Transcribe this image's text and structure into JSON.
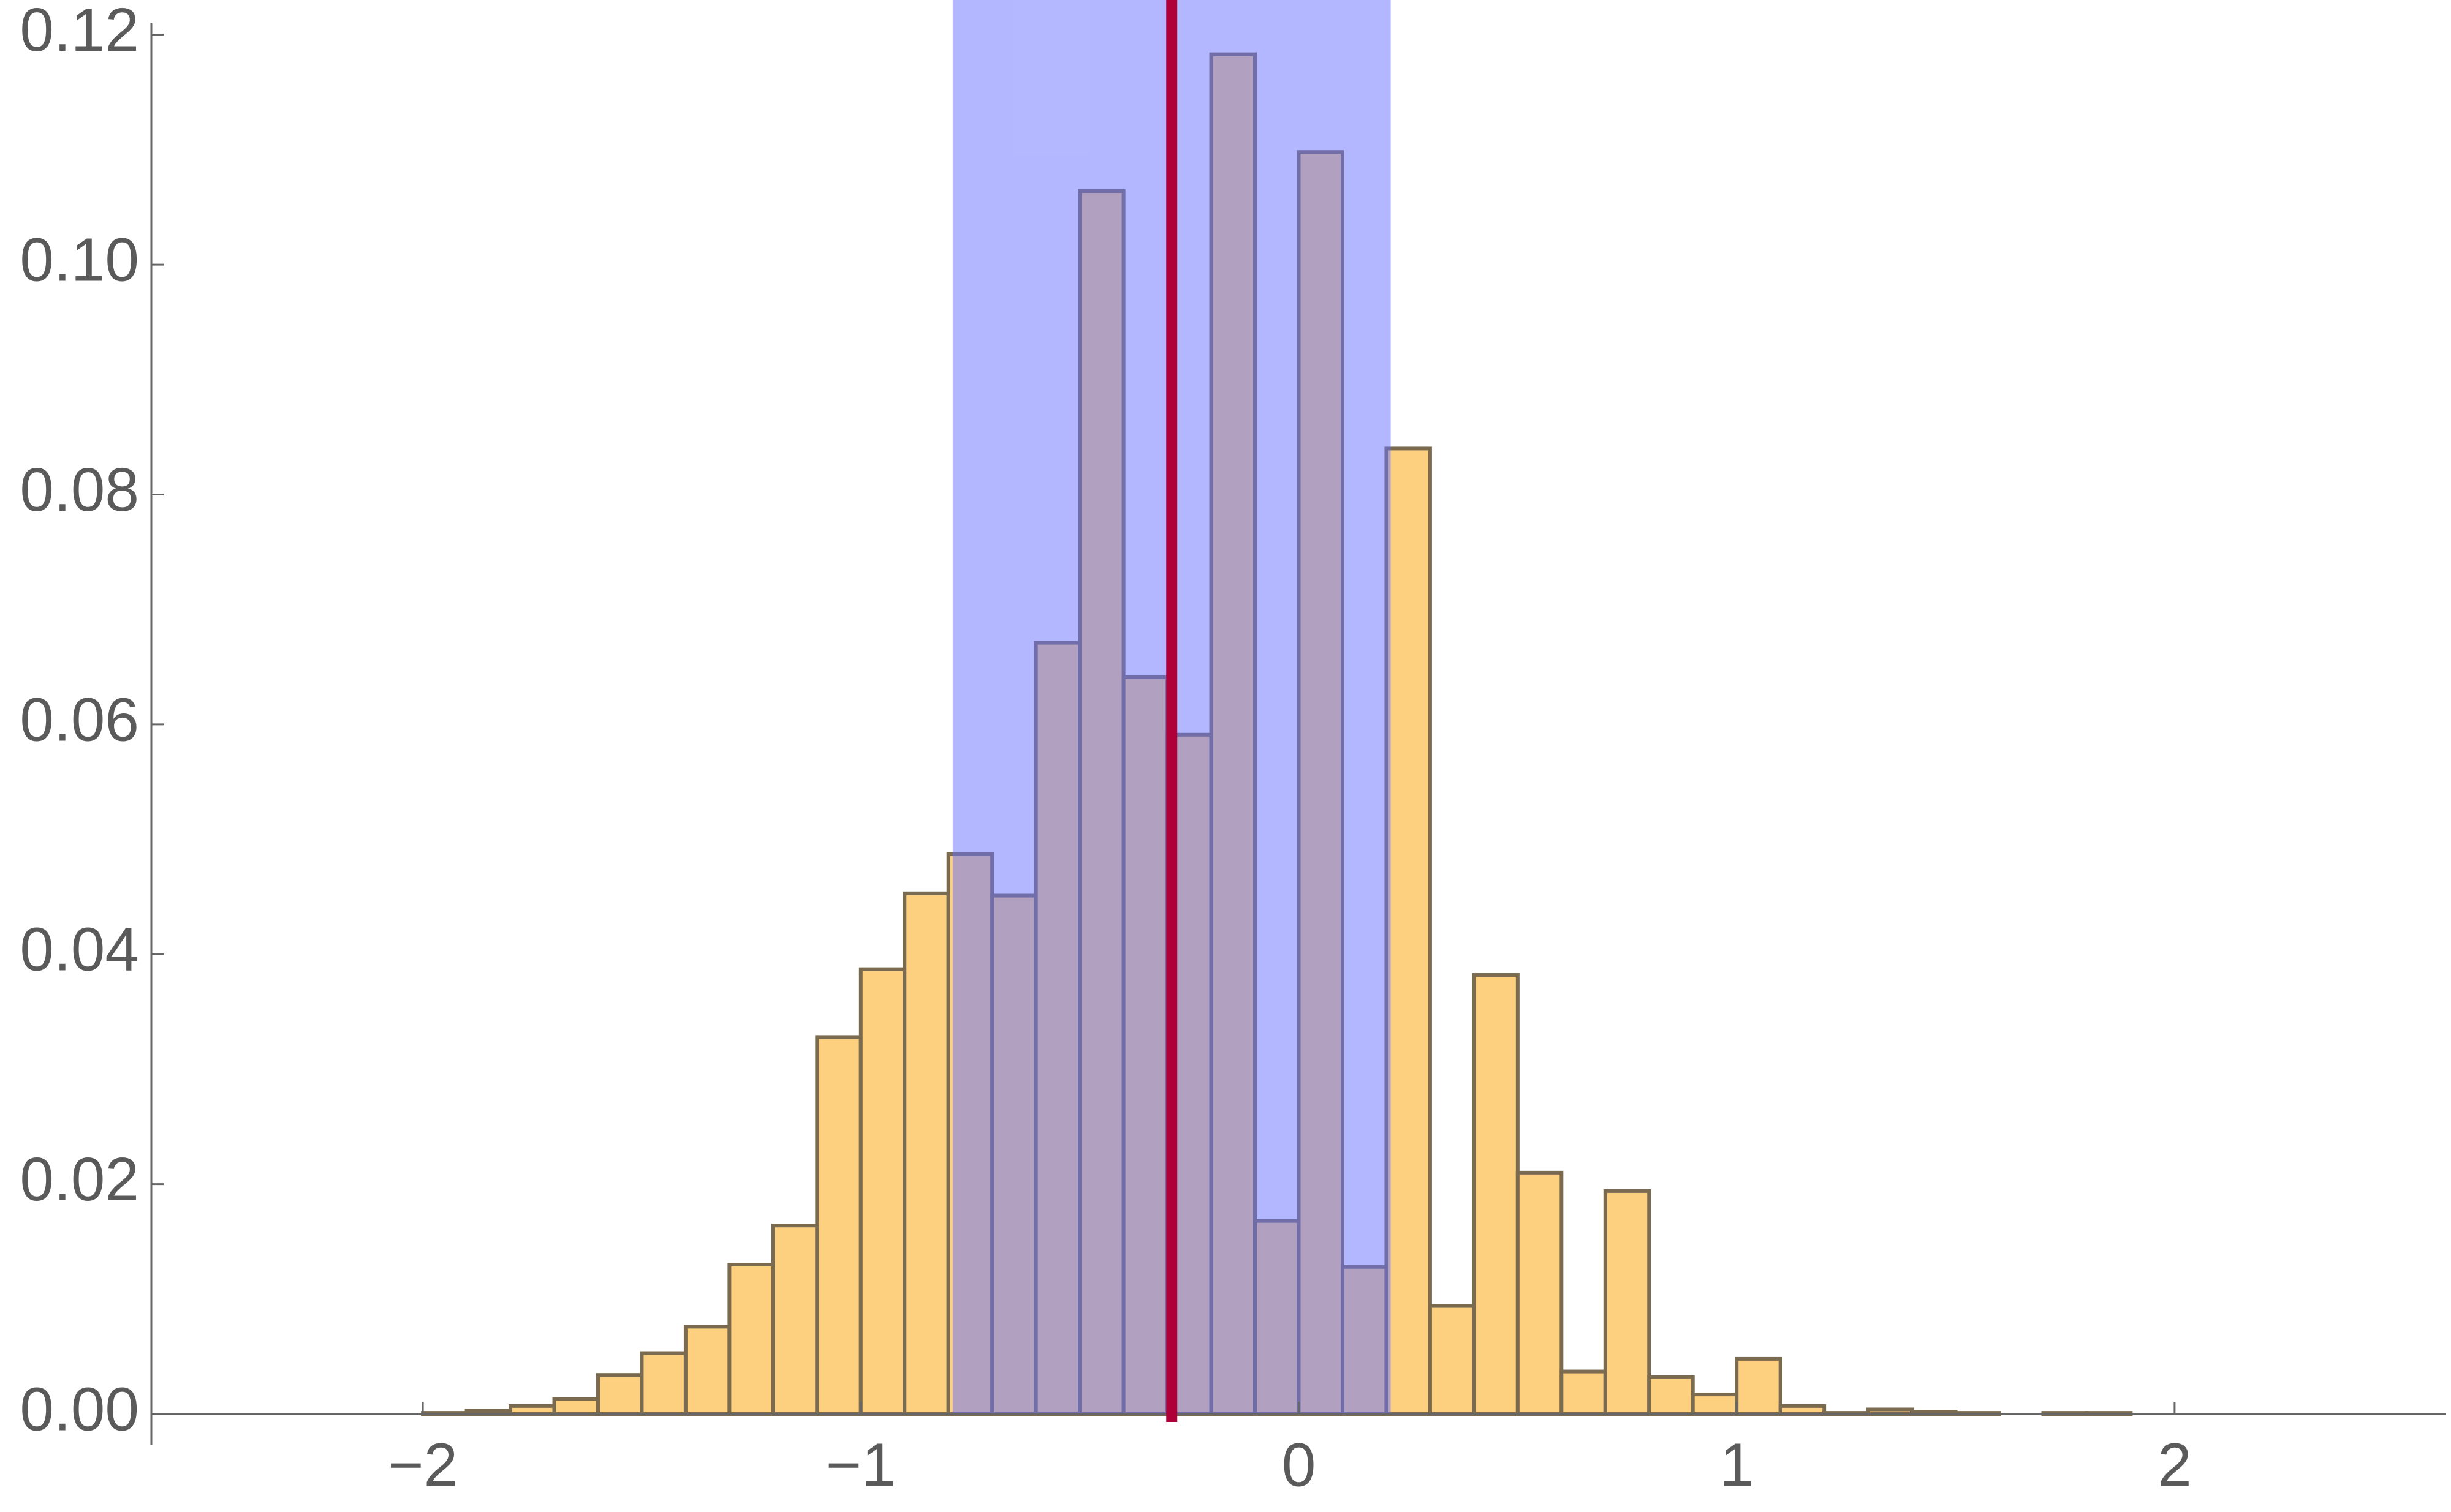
{
  "chart_data": {
    "type": "histogram",
    "bins": [
      -2.0,
      -1.9,
      -1.8,
      -1.7,
      -1.6,
      -1.5,
      -1.4,
      -1.3,
      -1.2,
      -1.1,
      -1.0,
      -0.9,
      -0.8,
      -0.7,
      -0.6,
      -0.5,
      -0.4,
      -0.3,
      -0.2,
      -0.1,
      0,
      0.1,
      0.2,
      0.3,
      0.4,
      0.5,
      0.6,
      0.7,
      0.8,
      0.9,
      1.0,
      1.1,
      1.2,
      1.3,
      1.4,
      1.5,
      1.6,
      1.7,
      1.8,
      1.9
    ],
    "values": [
      0.0001,
      0.0003,
      0.0007,
      0.0013,
      0.0034,
      0.0053,
      0.0076,
      0.013,
      0.0164,
      0.0328,
      0.0387,
      0.0453,
      0.0487,
      0.0451,
      0.0671,
      0.1064,
      0.0641,
      0.0591,
      0.1183,
      0.0168,
      0.1098,
      0.0128,
      0.084,
      0.0094,
      0.0382,
      0.021,
      0.0037,
      0.0194,
      0.0032,
      0.0017,
      0.0048,
      0.0007,
      0.0001,
      0.0004,
      0.0002,
      0.0001,
      0,
      0.0001,
      0.0001
    ],
    "color": "#fdd07f",
    "shaded_range": [
      -0.79,
      0.21
    ],
    "shaded_color": "#6670ff",
    "vline": -0.29,
    "vline_color": "#b0003a",
    "xlim": [
      -2.62,
      2.62
    ],
    "xticks": [
      {
        "value": -2,
        "label": "−2"
      },
      {
        "value": -1,
        "label": "−1"
      },
      0,
      1,
      2
    ],
    "ylim": [
      0,
      0.121
    ],
    "yticks": [
      {
        "value": 0,
        "label": "0.00"
      },
      {
        "value": 0.02,
        "label": "0.02"
      },
      {
        "value": 0.04,
        "label": "0.04"
      },
      {
        "value": 0.06,
        "label": "0.06"
      },
      {
        "value": 0.08,
        "label": "0.08"
      },
      {
        "value": 0.1,
        "label": "0.10"
      },
      {
        "value": 0.12,
        "label": "0.12"
      }
    ]
  }
}
